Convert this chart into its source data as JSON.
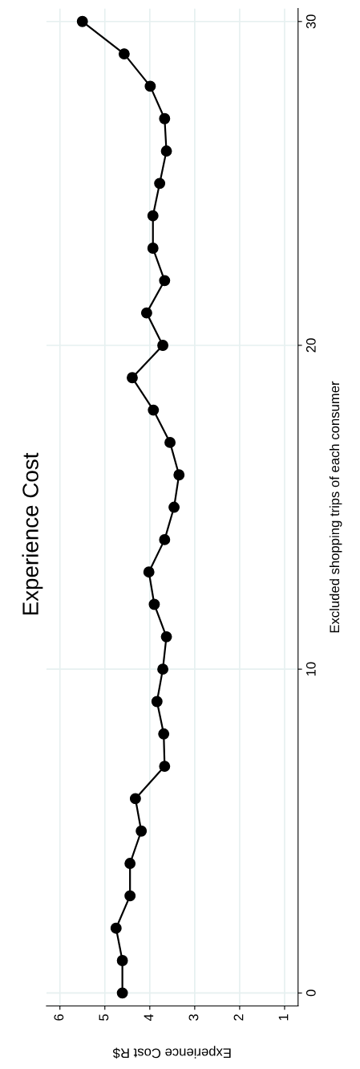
{
  "chart_data": {
    "type": "line",
    "title": "Experience Cost",
    "xlabel": "Experience Cost R$",
    "ylabel": "Excluded shopping trips of each consumer",
    "series": [
      {
        "color": "#000000",
        "x": [
          4.61,
          4.61,
          4.75,
          4.44,
          4.44,
          4.19,
          4.32,
          3.67,
          3.69,
          3.84,
          3.71,
          3.63,
          3.9,
          4.02,
          3.67,
          3.46,
          3.35,
          3.55,
          3.92,
          4.39,
          3.71,
          4.07,
          3.67,
          3.93,
          3.93,
          3.78,
          3.63,
          3.67,
          3.99,
          4.57,
          5.5
        ],
        "values": [
          0,
          1,
          2,
          3,
          4,
          5,
          6,
          7,
          8,
          9,
          10,
          11,
          12,
          13,
          14,
          15,
          16,
          17,
          18,
          19,
          20,
          21,
          22,
          23,
          24,
          25,
          26,
          27,
          28,
          29,
          30
        ]
      }
    ],
    "xlim": [
      6.3,
      0.7
    ],
    "ylim": [
      -0.4,
      30.4
    ],
    "xticks": [
      1,
      2,
      3,
      4,
      5,
      6
    ],
    "yticks": [
      0,
      10,
      20,
      30
    ],
    "grid": true,
    "marker": "circle",
    "line_style": "solid"
  }
}
